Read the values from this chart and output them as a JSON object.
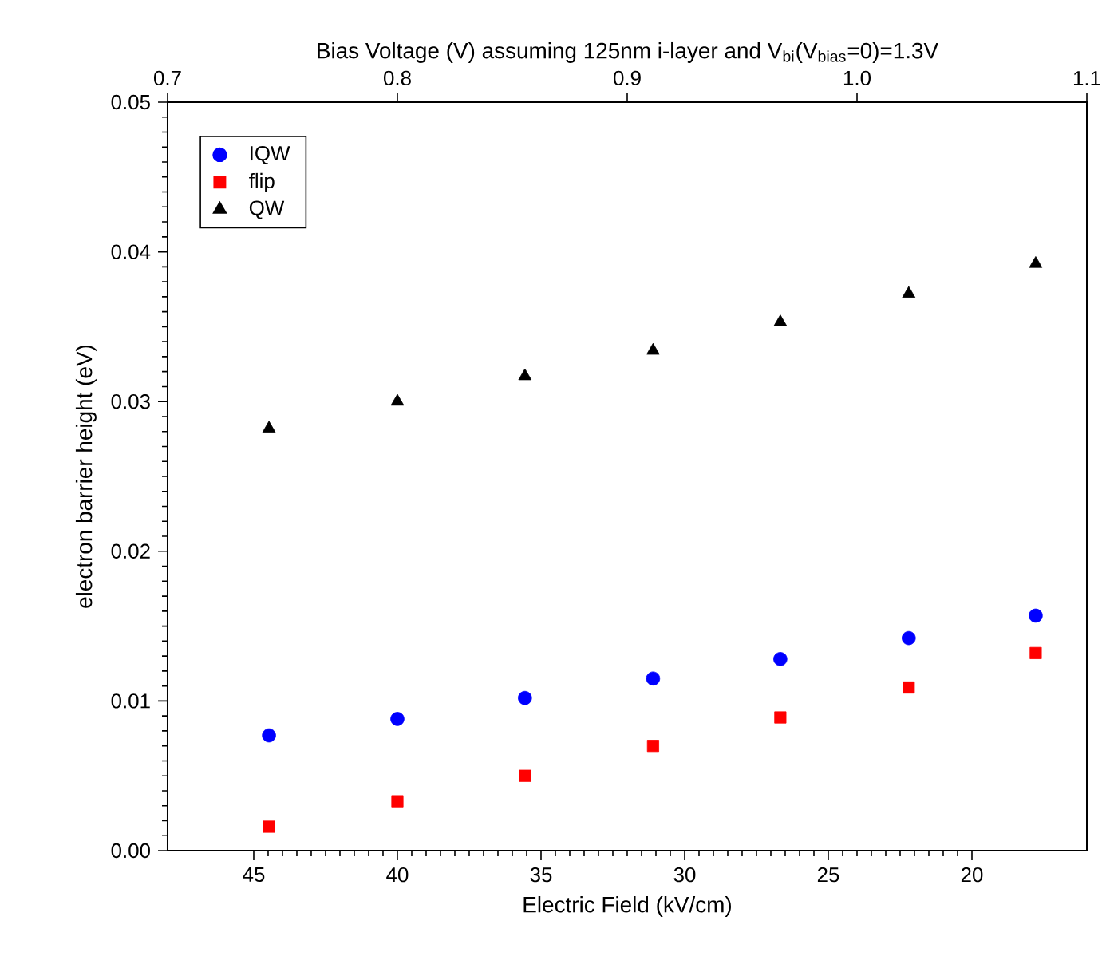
{
  "chart_data": {
    "type": "scatter",
    "xlabel": "Electric Field (kV/cm)",
    "ylabel": "electron barrier height (eV)",
    "x2label": "Bias Voltage (V)  assuming 125nm i-layer and V$_{bi}$(V$_{bias}$=0)=1.3V",
    "x": [
      44.47,
      40.0,
      35.56,
      31.1,
      26.67,
      22.2,
      17.78
    ],
    "series": [
      {
        "name": "IQW",
        "color": "#0000ff",
        "marker": "circle",
        "values": [
          0.0077,
          0.0088,
          0.0102,
          0.0115,
          0.0128,
          0.0142,
          0.0157
        ]
      },
      {
        "name": "flip",
        "color": "#ff0000",
        "marker": "square",
        "values": [
          0.0016,
          0.0033,
          0.005,
          0.007,
          0.0089,
          0.0109,
          0.0132
        ]
      },
      {
        "name": "QW",
        "color": "#000000",
        "marker": "triangle",
        "values": [
          0.0282,
          0.03,
          0.0317,
          0.0334,
          0.0353,
          0.0372,
          0.0392
        ]
      }
    ],
    "xlim": [
      48,
      16
    ],
    "xticks": [
      45,
      40,
      35,
      30,
      25,
      20
    ],
    "ylim": [
      0,
      0.05
    ],
    "yticks": [
      {
        "value": 0,
        "label": "0.00"
      },
      0.01,
      0.02,
      0.03,
      0.04,
      0.05
    ],
    "x2lim": [
      0.7,
      1.1
    ],
    "x2ticks": [
      0.7,
      0.8,
      0.9,
      {
        "value": 1.0,
        "label": "1.0"
      },
      1.1
    ],
    "grid": false,
    "legend": "top left"
  }
}
